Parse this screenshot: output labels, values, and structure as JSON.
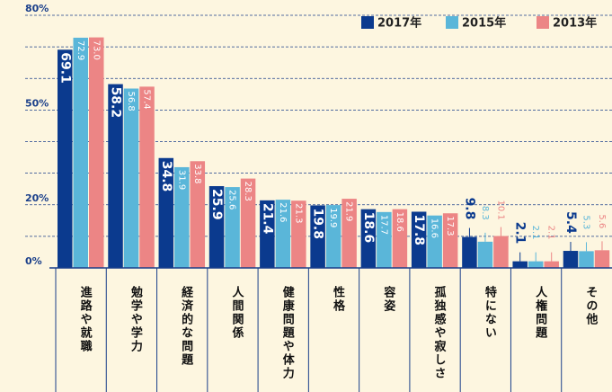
{
  "chart_data": {
    "type": "bar",
    "categories": [
      "進路や就職",
      "勉学や学力",
      "経済的な問題",
      "人間関係",
      "健康問題や体力",
      "性格",
      "容姿",
      "孤独感や寂しさ",
      "特にない",
      "人権問題",
      "その他"
    ],
    "series": [
      {
        "name": "2017年",
        "color": "#0b3a8e",
        "values": [
          69.1,
          58.2,
          34.8,
          25.9,
          21.4,
          19.8,
          18.6,
          17.8,
          9.8,
          2.1,
          5.4
        ],
        "value_labels": [
          "69.1",
          "58.2",
          "34.8",
          "25.9",
          "21.4",
          "19.8",
          "18.6",
          "17.8",
          "9.8",
          "2.1",
          "5.4"
        ]
      },
      {
        "name": "2015年",
        "color": "#5ab6d9",
        "values": [
          72.9,
          56.8,
          31.9,
          25.6,
          21.6,
          19.9,
          17.7,
          16.6,
          8.3,
          2.1,
          5.3
        ],
        "value_labels": [
          "72.9",
          "56.8",
          "31.9",
          "25.6",
          "21.6",
          "19.9",
          "17.7",
          "16.6",
          "8.3",
          "2.1",
          "5.3"
        ]
      },
      {
        "name": "2013年",
        "color": "#ec8585",
        "values": [
          73.0,
          57.4,
          33.8,
          28.3,
          21.3,
          21.9,
          18.6,
          17.3,
          10.1,
          2.1,
          5.6
        ],
        "value_labels": [
          "73.0",
          "57.4",
          "33.8",
          "28.3",
          "21.3",
          "21.9",
          "18.6",
          "17.3",
          "10.1",
          "2.1",
          "5.6"
        ]
      }
    ],
    "ylim": [
      0,
      80
    ],
    "yticks": [
      {
        "value": 0,
        "label": "0%"
      },
      {
        "value": 20,
        "label": "20%"
      },
      {
        "value": 50,
        "label": "50%"
      },
      {
        "value": 80,
        "label": "80%"
      }
    ],
    "minor_yticks": [
      10,
      30,
      40,
      60,
      70
    ],
    "grid": true,
    "legend": "top-right"
  }
}
